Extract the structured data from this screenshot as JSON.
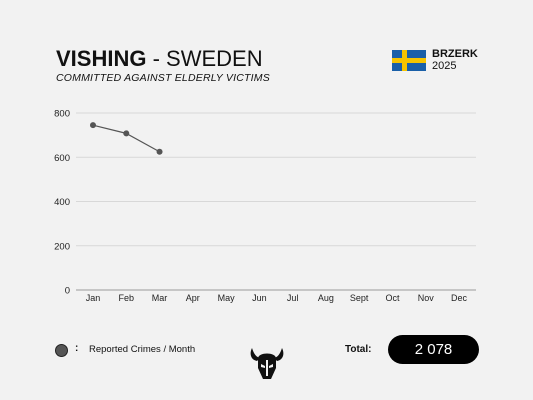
{
  "header": {
    "title_bold": "VISHING",
    "title_rest": " - SWEDEN",
    "subtitle": "COMMITTED AGAINST ELDERLY VICTIMS"
  },
  "brand": {
    "name": "BRZERK",
    "year": "2025",
    "flag_colors": {
      "blue": "#1a5fa8",
      "yellow": "#f5c400"
    }
  },
  "legend": {
    "colon": ":",
    "label": "Reported Crimes / Month",
    "marker_color": "#555555"
  },
  "total": {
    "label": "Total:",
    "value": "2 078"
  },
  "mascot": {
    "icon": "viking-helmet-icon"
  },
  "chart_data": {
    "type": "line",
    "categories": [
      "Jan",
      "Feb",
      "Mar",
      "Apr",
      "May",
      "Jun",
      "Jul",
      "Aug",
      "Sept",
      "Oct",
      "Nov",
      "Dec"
    ],
    "series": [
      {
        "name": "Reported Crimes / Month",
        "values": [
          745,
          708,
          625,
          null,
          null,
          null,
          null,
          null,
          null,
          null,
          null,
          null
        ]
      }
    ],
    "ylim": [
      0,
      800
    ],
    "yticks": [
      0,
      200,
      400,
      600,
      800
    ],
    "grid": true,
    "title": "",
    "xlabel": "",
    "ylabel": ""
  }
}
